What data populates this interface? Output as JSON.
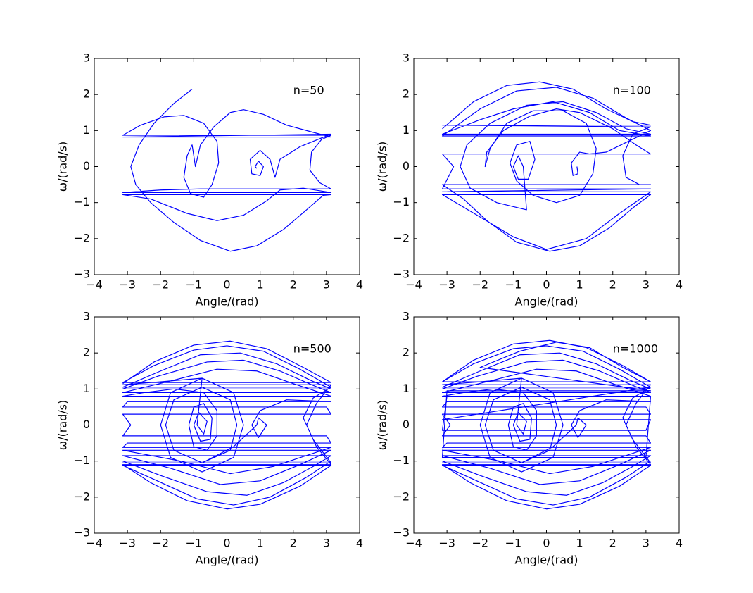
{
  "chart_data": [
    {
      "type": "line",
      "annotation": "n=50",
      "xlabel": "Angle/(rad)",
      "ylabel": "ω/(rad/s)",
      "color": "#0000ff",
      "xlim": [
        -4,
        4
      ],
      "ylim": [
        -3,
        3
      ],
      "xticks": [
        {
          "value": -4,
          "label": "−4"
        },
        {
          "value": -3,
          "label": "−3"
        },
        {
          "value": -2,
          "label": "−2"
        },
        {
          "value": -1,
          "label": "−1"
        },
        0,
        1,
        2,
        3,
        4
      ],
      "yticks": [
        {
          "value": -3,
          "label": "−3"
        },
        {
          "value": -2,
          "label": "−2"
        },
        {
          "value": -1,
          "label": "−1"
        },
        0,
        1,
        2,
        3
      ],
      "x": [
        -1.05,
        -1.6,
        -2.2,
        -2.65,
        -2.9,
        -2.75,
        -2.3,
        -1.6,
        -0.8,
        0.1,
        0.9,
        1.7,
        2.4,
        2.9,
        3.14,
        -3.14,
        -2.3,
        -1.2,
        -0.3,
        0.5,
        1.2,
        1.6,
        2.3,
        3.14,
        -3.14,
        -2.0,
        -0.8,
        3.14,
        2.8,
        2.5,
        2.55,
        2.85,
        3.14,
        -3.14,
        -2.6,
        -1.9,
        -1.3,
        -0.7,
        -0.3,
        -0.25,
        -0.45,
        -0.7,
        -1.1,
        -1.3,
        -1.2,
        -1.05,
        -0.95,
        -0.8,
        -0.4,
        0.1,
        0.5,
        1.1,
        1.8,
        2.6,
        3.14,
        -3.14,
        3.14,
        2.2,
        1.6,
        1.45,
        1.3,
        1.0,
        0.7,
        0.75,
        1.0,
        1.1,
        0.95,
        0.85,
        0.9
      ],
      "values": [
        2.15,
        1.75,
        1.2,
        0.6,
        0,
        -0.5,
        -1.0,
        -1.55,
        -2.05,
        -2.35,
        -2.2,
        -1.75,
        -1.2,
        -0.8,
        -0.78,
        -0.78,
        -0.9,
        -1.3,
        -1.5,
        -1.35,
        -0.95,
        -0.65,
        -0.6,
        -0.72,
        -0.72,
        -0.65,
        -0.62,
        -0.62,
        -0.45,
        -0.1,
        0.4,
        0.75,
        0.87,
        0.87,
        1.15,
        1.38,
        1.42,
        1.2,
        0.7,
        0.1,
        -0.5,
        -0.85,
        -0.75,
        -0.3,
        0.3,
        0.6,
        0,
        0.6,
        1.1,
        1.5,
        1.58,
        1.45,
        1.15,
        0.95,
        0.82,
        0.82,
        0.9,
        0.55,
        0.2,
        -0.3,
        0.2,
        0.45,
        0.2,
        -0.2,
        -0.25,
        0,
        0.15,
        0,
        -0.05
      ]
    },
    {
      "type": "line",
      "annotation": "n=100",
      "xlabel": "Angle/(rad)",
      "ylabel": "ω/(rad/s)",
      "color": "#0000ff",
      "xlim": [
        -4,
        4
      ],
      "ylim": [
        -3,
        3
      ],
      "xticks": [
        {
          "value": -4,
          "label": "−4"
        },
        {
          "value": -3,
          "label": "−3"
        },
        {
          "value": -2,
          "label": "−2"
        },
        {
          "value": -1,
          "label": "−1"
        },
        0,
        1,
        2,
        3,
        4
      ],
      "yticks": [
        {
          "value": -3,
          "label": "−3"
        },
        {
          "value": -2,
          "label": "−2"
        },
        {
          "value": -1,
          "label": "−1"
        },
        0,
        1,
        2,
        3
      ],
      "x": [
        -3.14,
        -2.2,
        -1.2,
        -0.2,
        0.8,
        1.8,
        2.6,
        3.14,
        -3.14,
        3.14,
        2.6,
        2.3,
        2.4,
        2.8,
        3.14,
        -3.14,
        -2.5,
        -1.8,
        -0.9,
        0.1,
        1.0,
        1.9,
        2.6,
        3.14,
        -3.14,
        -2.0,
        -1.0,
        0,
        1.2,
        2.2,
        3.14,
        -3.14,
        3.14,
        -3.14,
        -2.8,
        -3.14,
        3.14,
        2.7,
        2.0,
        1.0,
        0.3,
        -0.5,
        -1.3,
        -1.8,
        -1.85,
        -1.7,
        -1.2,
        -0.4,
        0.5,
        1.2,
        1.5,
        1.4,
        1.0,
        0.3,
        -0.4,
        -0.9,
        -1.1,
        -0.9,
        -0.5,
        -0.35,
        -0.55,
        -0.85,
        -1.0,
        -0.85,
        -0.7,
        -0.6,
        -1.5,
        -2.3,
        -2.6,
        -2.4,
        -1.7,
        -0.6,
        0.5,
        1.5,
        2.4,
        3.14,
        -3.14,
        -2.0,
        -1.0,
        0.2,
        1.3,
        2.2,
        3.14,
        -3.14,
        -2.0,
        -0.9,
        0.3,
        1.4,
        2.4,
        3.14,
        1.8,
        1.3,
        1.0,
        0.75,
        0.8,
        0.95,
        0.92
      ],
      "values": [
        1.05,
        1.8,
        2.25,
        2.35,
        2.15,
        1.6,
        1.25,
        1.15,
        1.15,
        1.1,
        0.9,
        0.3,
        -0.3,
        -0.5,
        -0.5,
        -0.5,
        -0.9,
        -1.5,
        -2.1,
        -2.35,
        -2.2,
        -1.7,
        -1.15,
        -0.78,
        -0.78,
        -1.4,
        -1.95,
        -2.3,
        -2.0,
        -1.3,
        -0.7,
        -0.7,
        -0.62,
        -0.62,
        0,
        0.35,
        0.35,
        0.6,
        1.05,
        1.5,
        1.6,
        1.4,
        1.0,
        0.4,
        0,
        0.5,
        1.2,
        1.55,
        1.55,
        1.2,
        0.5,
        -0.2,
        -0.8,
        -1.0,
        -0.8,
        -0.4,
        0.1,
        0.6,
        0.7,
        0.2,
        -0.35,
        -0.35,
        0,
        0.3,
        0,
        -1.2,
        -1.0,
        -0.6,
        0,
        0.6,
        1.2,
        1.7,
        1.8,
        1.5,
        1.05,
        0.9,
        0.9,
        1.3,
        1.6,
        1.8,
        1.5,
        1.0,
        0.85,
        0.85,
        1.6,
        2.1,
        2.2,
        1.9,
        1.35,
        1.0,
        0.4,
        0.35,
        0.4,
        0.1,
        -0.25,
        -0.2,
        0
      ]
    },
    {
      "type": "line",
      "annotation": "n=500",
      "xlabel": "Angle/(rad)",
      "ylabel": "ω/(rad/s)",
      "color": "#0000ff",
      "xlim": [
        -4,
        4
      ],
      "ylim": [
        -3,
        3
      ],
      "xticks": [
        {
          "value": -4,
          "label": "−4"
        },
        {
          "value": -3,
          "label": "−3"
        },
        {
          "value": -2,
          "label": "−2"
        },
        {
          "value": -1,
          "label": "−1"
        },
        0,
        1,
        2,
        3,
        4
      ],
      "yticks": [
        {
          "value": -3,
          "label": "−3"
        },
        {
          "value": -2,
          "label": "−2"
        },
        {
          "value": -1,
          "label": "−1"
        },
        0,
        1,
        2,
        3
      ],
      "x": [
        -3.14,
        -2.2,
        -1.0,
        0.1,
        1.2,
        2.3,
        3.14,
        -3.14,
        -2.2,
        -1.0,
        0.0,
        1.1,
        2.2,
        3.14,
        -3.14,
        -2.0,
        -0.8,
        0.4,
        1.5,
        2.5,
        3.14,
        -3.14,
        -2.1,
        -0.6,
        0.5,
        1.6,
        2.6,
        3.14,
        -3.14,
        -1.8,
        -0.3,
        0.9,
        2.0,
        3.14,
        -3.14,
        -2.5,
        -1.6,
        -0.7,
        -0.3,
        -0.3,
        -0.6,
        -1.0,
        -1.15,
        -1.0,
        -0.7,
        -0.45,
        -0.5,
        -0.8,
        -1.0,
        -0.85,
        -0.6,
        -0.7,
        -0.9,
        -0.75,
        0.2,
        0.5,
        0.2,
        -0.75,
        -1.7,
        -2.0,
        -1.7,
        -0.75,
        -2.0,
        -3.14,
        3.14,
        2.7,
        2.4,
        2.7,
        3.14,
        -3.14,
        -2.3,
        -1.2,
        0.0,
        1.0,
        2.2,
        3.14,
        -3.14,
        -2.1,
        -0.9,
        0.2,
        1.3,
        2.4,
        3.14,
        -3.14,
        -2.0,
        -0.6,
        0.6,
        1.7,
        2.6,
        3.14,
        -3.14,
        -1.7,
        -0.2,
        1.0,
        2.2,
        3.14,
        -3.14,
        -1.4,
        0.1,
        1.4,
        3.14,
        -3.14,
        -3.0,
        3.14,
        3.0,
        -3.14,
        -2.9,
        -3.14,
        3.14,
        3.0,
        -3.14,
        -3.0,
        3.14,
        1.8,
        1.0,
        0.75,
        0.95,
        1.2,
        0.95,
        0.9,
        0.2,
        -0.75,
        -1.6,
        -1.85,
        -1.6,
        -0.75,
        0.1,
        0.3,
        0.1,
        -0.75,
        -2.2,
        -3.14,
        3.14,
        2.6,
        2.3,
        2.6,
        3.14
      ],
      "values": [
        1.15,
        1.75,
        2.22,
        2.33,
        2.12,
        1.6,
        1.18,
        1.18,
        1.65,
        2.08,
        2.2,
        2.05,
        1.55,
        1.05,
        1.05,
        1.5,
        1.95,
        2.0,
        1.7,
        1.25,
        1.0,
        1.0,
        1.35,
        1.75,
        1.8,
        1.5,
        1.1,
        0.9,
        0.9,
        1.2,
        1.55,
        1.5,
        1.15,
        0.8,
        0.8,
        0.9,
        1.0,
        0.9,
        0.4,
        -0.3,
        -0.7,
        -0.6,
        0,
        0.5,
        0.6,
        0.2,
        -0.4,
        -0.45,
        0,
        0.35,
        0.1,
        -0.25,
        0,
        1.3,
        0.9,
        0,
        -0.9,
        -1.3,
        -0.9,
        0,
        0.9,
        1.3,
        1.2,
        1.12,
        1.12,
        0.6,
        0,
        -0.6,
        -1.1,
        -1.1,
        -1.6,
        -2.1,
        -2.33,
        -2.2,
        -1.7,
        -1.12,
        -1.12,
        -1.55,
        -2.05,
        -2.22,
        -2.0,
        -1.45,
        -1.0,
        -1.0,
        -1.4,
        -1.85,
        -1.95,
        -1.6,
        -1.15,
        -0.85,
        -0.85,
        -1.2,
        -1.65,
        -1.55,
        -1.1,
        -0.7,
        -0.7,
        -1.0,
        -1.35,
        -1.15,
        -0.62,
        -0.62,
        -0.5,
        -0.5,
        -0.3,
        -0.3,
        0,
        0.3,
        0.3,
        0.5,
        0.5,
        0.65,
        0.65,
        0.7,
        0.4,
        0,
        -0.35,
        0,
        0.2,
        0,
        -0.6,
        -1.05,
        -0.7,
        0,
        0.7,
        1.05,
        0.7,
        0,
        -0.7,
        -1.05,
        -1.05,
        -1.05,
        -1.05,
        -0.4,
        0.2,
        0.75,
        1.05
      ]
    },
    {
      "type": "line",
      "annotation": "n=1000",
      "xlabel": "Angle/(rad)",
      "ylabel": "ω/(rad/s)",
      "color": "#0000ff",
      "xlim": [
        -4,
        4
      ],
      "ylim": [
        -3,
        3
      ],
      "xticks": [
        {
          "value": -4,
          "label": "−4"
        },
        {
          "value": -3,
          "label": "−3"
        },
        {
          "value": -2,
          "label": "−2"
        },
        {
          "value": -1,
          "label": "−1"
        },
        0,
        1,
        2,
        3,
        4
      ],
      "yticks": [
        {
          "value": -3,
          "label": "−3"
        },
        {
          "value": -2,
          "label": "−2"
        },
        {
          "value": -1,
          "label": "−1"
        },
        0,
        1,
        2,
        3
      ],
      "x": [
        -3.14,
        -2.2,
        -1.0,
        0.1,
        1.2,
        2.3,
        3.14,
        -3.14,
        -2.2,
        -1.0,
        0.0,
        1.1,
        2.2,
        3.14,
        -3.14,
        -2.0,
        -0.8,
        0.4,
        1.5,
        2.5,
        3.14,
        -3.14,
        -2.1,
        -0.6,
        0.5,
        1.6,
        2.6,
        3.14,
        -3.14,
        -1.8,
        -0.3,
        0.9,
        2.0,
        3.14,
        -3.14,
        -2.5,
        -1.6,
        -0.7,
        -0.3,
        -0.3,
        -0.6,
        -1.0,
        -1.15,
        -1.0,
        -0.7,
        -0.45,
        -0.5,
        -0.8,
        -1.0,
        -0.85,
        -0.6,
        -0.7,
        -0.9,
        -0.75,
        0.2,
        0.5,
        0.2,
        -0.75,
        -1.7,
        -2.0,
        -1.7,
        -0.75,
        -2.0,
        -3.14,
        3.14,
        2.7,
        2.4,
        2.7,
        3.14,
        -3.14,
        -2.3,
        -1.2,
        0.0,
        1.0,
        2.2,
        3.14,
        -3.14,
        -2.1,
        -0.9,
        0.2,
        1.3,
        2.4,
        3.14,
        -3.14,
        -2.0,
        -0.6,
        0.6,
        1.7,
        2.6,
        3.14,
        -3.14,
        -1.7,
        -0.2,
        1.0,
        2.2,
        3.14,
        -3.14,
        -1.4,
        0.1,
        1.4,
        3.14,
        -3.14,
        -3.0,
        3.14,
        3.0,
        -3.14,
        -2.9,
        -3.14,
        3.14,
        3.0,
        -3.14,
        -3.0,
        3.14,
        1.8,
        1.0,
        0.75,
        0.95,
        1.2,
        0.95,
        0.9,
        0.2,
        -0.75,
        -1.6,
        -1.85,
        -1.6,
        -0.75,
        0.1,
        0.3,
        0.1,
        -0.75,
        -2.2,
        -3.14,
        3.14,
        2.6,
        2.3,
        2.6,
        3.14,
        -3.14,
        3.14,
        3.0,
        -3.14,
        -3.0,
        3.14,
        3.0,
        -3.14,
        -3.0,
        3.14,
        -2.0,
        -0.8,
        0.3,
        1.3,
        2.3,
        3.14
      ],
      "values": [
        1.2,
        1.8,
        2.25,
        2.35,
        2.15,
        1.65,
        1.2,
        1.2,
        1.7,
        2.12,
        2.2,
        2.05,
        1.55,
        1.05,
        1.05,
        1.5,
        1.95,
        2.0,
        1.7,
        1.25,
        1.0,
        1.0,
        1.35,
        1.75,
        1.8,
        1.5,
        1.1,
        0.9,
        0.9,
        1.2,
        1.55,
        1.5,
        1.15,
        0.8,
        0.8,
        0.9,
        1.0,
        0.9,
        0.4,
        -0.3,
        -0.7,
        -0.6,
        0,
        0.5,
        0.6,
        0.2,
        -0.4,
        -0.45,
        0,
        0.35,
        0.1,
        -0.25,
        0,
        1.3,
        0.9,
        0,
        -0.9,
        -1.3,
        -0.9,
        0,
        0.9,
        1.3,
        1.2,
        1.12,
        1.12,
        0.6,
        0,
        -0.6,
        -1.1,
        -1.1,
        -1.6,
        -2.1,
        -2.33,
        -2.2,
        -1.7,
        -1.12,
        -1.12,
        -1.55,
        -2.05,
        -2.22,
        -2.0,
        -1.45,
        -1.0,
        -1.0,
        -1.4,
        -1.85,
        -1.95,
        -1.6,
        -1.15,
        -0.85,
        -0.85,
        -1.2,
        -1.65,
        -1.55,
        -1.1,
        -0.7,
        -0.7,
        -1.0,
        -1.35,
        -1.15,
        -0.62,
        -0.62,
        -0.5,
        -0.5,
        -0.3,
        -0.3,
        0,
        0.3,
        0.3,
        0.5,
        0.5,
        0.65,
        0.65,
        0.7,
        0.4,
        0,
        -0.35,
        0,
        0.2,
        0,
        -0.6,
        -1.05,
        -0.7,
        0,
        0.7,
        1.05,
        0.7,
        0,
        -0.7,
        -1.05,
        -1.05,
        -1.05,
        -1.05,
        -0.4,
        0.2,
        0.75,
        1.05,
        0.15,
        0.15,
        -0.15,
        -0.15,
        0.8,
        0.8,
        -0.9,
        -0.9,
        0.95,
        0.95,
        1.6,
        2.05,
        2.3,
        2.15,
        1.6,
        1.2
      ]
    }
  ]
}
